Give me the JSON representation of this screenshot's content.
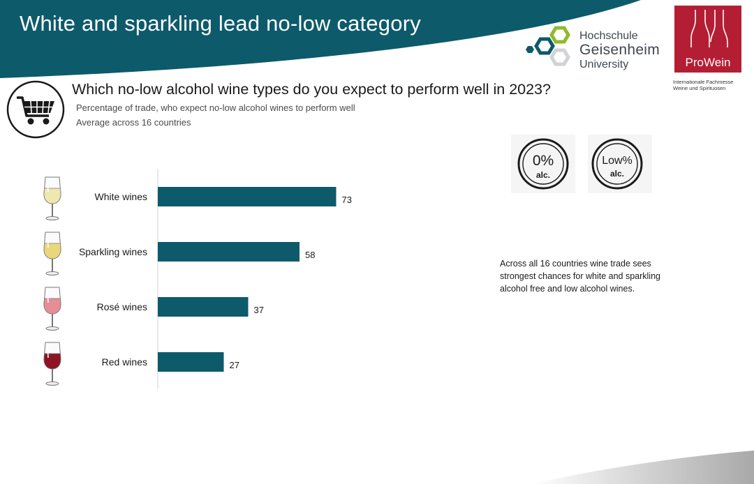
{
  "slide": {
    "title": "White and sparkling lead no-low category",
    "question": "Which no-low alcohol wine types do you expect to perform well in 2023?",
    "subtitle_1": "Percentage of trade, who expect no-low alcohol wines to perform well",
    "subtitle_2": "Average across 16 countries",
    "insight": "Across all 16 countries wine trade sees strongest chances for white and sparkling alcohol free and low alcohol wines.",
    "accent_color": "#0d5a6b"
  },
  "logos": {
    "hochschule_line1": "Hochschule",
    "hochschule_line2": "Geisenheim",
    "hochschule_line3": "University",
    "prowein_name": "ProWein",
    "prowein_tagline_1": "Internationale Fachmesse",
    "prowein_tagline_2": "Weine und Spirituosen"
  },
  "badges": {
    "zero_top": "0%",
    "zero_bottom": "alc.",
    "low_top": "Low%",
    "low_bottom": "alc."
  },
  "icons": [
    "shopping-cart-icon",
    "white-wine-glass-icon",
    "sparkling-wine-glass-icon",
    "rose-wine-glass-icon",
    "red-wine-glass-icon"
  ],
  "chart_data": {
    "type": "bar",
    "orientation": "horizontal",
    "categories": [
      "White wines",
      "Sparkling wines",
      "Rosé wines",
      "Red wines"
    ],
    "values": [
      73,
      58,
      37,
      27
    ],
    "glass_colors": [
      "#efe6b0",
      "#ead77c",
      "#e58e95",
      "#8e1424"
    ],
    "bar_color": "#0d5a6b",
    "xlim": [
      0,
      100
    ],
    "grid": false,
    "legend": "none"
  }
}
